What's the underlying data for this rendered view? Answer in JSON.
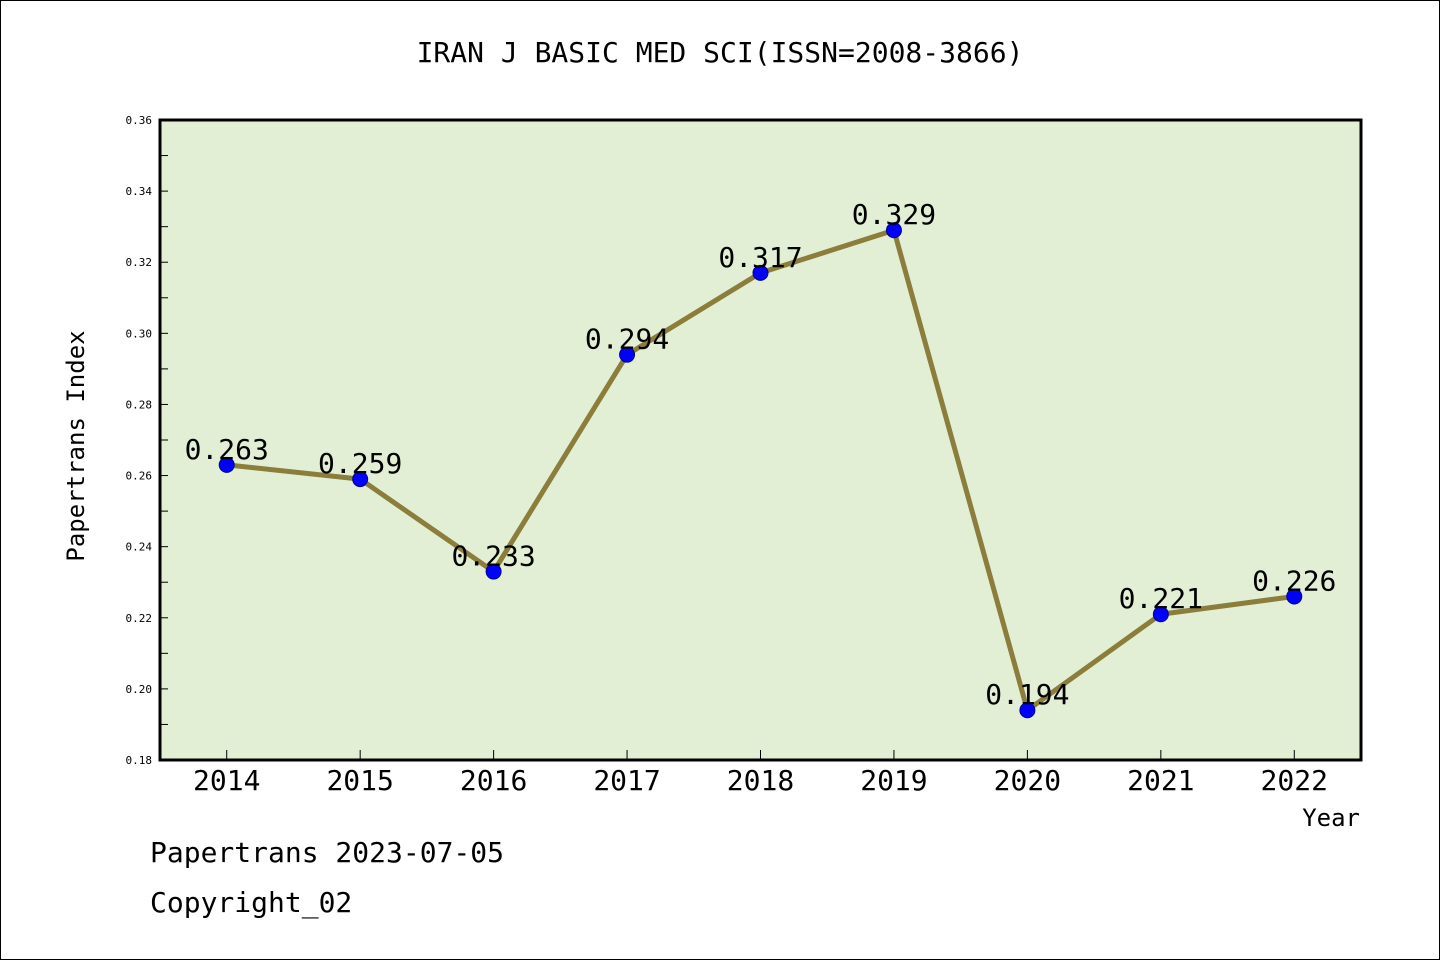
{
  "title": "IRAN J BASIC MED SCI(ISSN=2008-3866)",
  "footer": {
    "source_line": "Papertrans 2023-07-05",
    "copyright_line": "Copyright_02"
  },
  "colors": {
    "plot_background": "#e2efd5",
    "line": "#8b7d3a",
    "marker": "#0000ff"
  },
  "chart_data": {
    "type": "line",
    "title": "IRAN J BASIC MED SCI(ISSN=2008-3866)",
    "xlabel": "Year",
    "ylabel": "Papertrans Index",
    "categories": [
      "2014",
      "2015",
      "2016",
      "2017",
      "2018",
      "2019",
      "2020",
      "2021",
      "2022"
    ],
    "values": [
      0.263,
      0.259,
      0.233,
      0.294,
      0.317,
      0.329,
      0.194,
      0.221,
      0.226
    ],
    "data_labels": [
      "0.263",
      "0.259",
      "0.233",
      "0.294",
      "0.317",
      "0.329",
      "0.194",
      "0.221",
      "0.226"
    ],
    "ylim": [
      0.18,
      0.36
    ],
    "yticks": [
      "0.18",
      "0.20",
      "0.22",
      "0.24",
      "0.26",
      "0.28",
      "0.30",
      "0.32",
      "0.34",
      "0.36"
    ],
    "grid": false,
    "legend": "none"
  }
}
